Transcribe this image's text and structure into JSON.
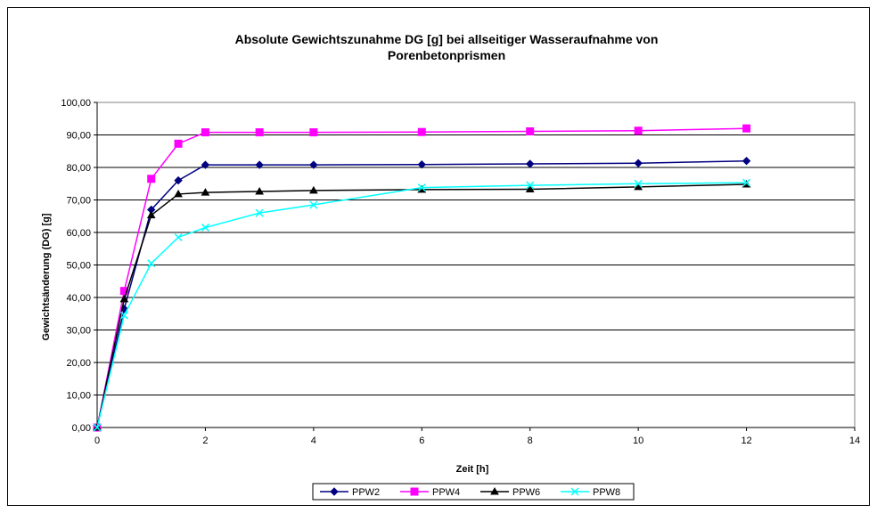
{
  "chart_data": {
    "type": "line",
    "title_line1": "Absolute Gewichtszunahme DG [g] bei allseitiger Wasseraufnahme von",
    "title_line2": "Porenbetonprismen",
    "xlabel": "Zeit [h]",
    "ylabel": "Gewichtsänderung (DG) [g]",
    "xlim": [
      0,
      14
    ],
    "ylim": [
      0,
      100
    ],
    "x_ticks": [
      0,
      2,
      4,
      6,
      8,
      10,
      12,
      14
    ],
    "y_ticks": [
      "0,00",
      "10,00",
      "20,00",
      "30,00",
      "40,00",
      "50,00",
      "60,00",
      "70,00",
      "80,00",
      "90,00",
      "100,00"
    ],
    "grid": "horizontal",
    "legend_position": "bottom",
    "series": [
      {
        "name": "PPW2",
        "color": "#000080",
        "marker": "diamond",
        "x": [
          0,
          0.5,
          1,
          1.5,
          2,
          3,
          4,
          6,
          8,
          10,
          12
        ],
        "y": [
          0,
          36.5,
          67.0,
          76.0,
          80.8,
          80.8,
          80.8,
          80.9,
          81.1,
          81.3,
          82.0
        ]
      },
      {
        "name": "PPW4",
        "color": "#ff00ff",
        "marker": "square",
        "x": [
          0,
          0.5,
          1,
          1.5,
          2,
          3,
          4,
          6,
          8,
          10,
          12
        ],
        "y": [
          0,
          42.0,
          76.5,
          87.3,
          90.8,
          90.8,
          90.8,
          90.9,
          91.1,
          91.3,
          92.0
        ]
      },
      {
        "name": "PPW6",
        "color": "#000000",
        "marker": "triangle",
        "x": [
          0,
          0.5,
          1,
          1.5,
          2,
          3,
          4,
          6,
          8,
          10,
          12
        ],
        "y": [
          0,
          39.5,
          65.3,
          71.8,
          72.3,
          72.6,
          72.9,
          73.2,
          73.3,
          74.0,
          74.8
        ]
      },
      {
        "name": "PPW8",
        "color": "#00ffff",
        "marker": "x",
        "x": [
          0,
          0.5,
          1,
          1.5,
          2,
          3,
          4,
          6,
          8,
          10,
          12
        ],
        "y": [
          0,
          34.5,
          50.5,
          58.5,
          61.5,
          66.0,
          68.5,
          73.8,
          74.5,
          75.0,
          75.3
        ]
      }
    ]
  }
}
